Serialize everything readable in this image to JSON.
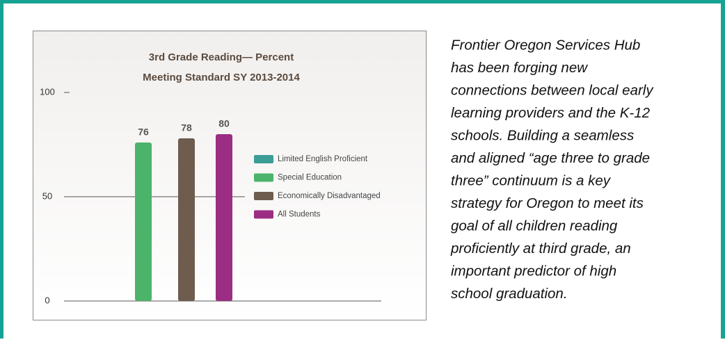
{
  "chart_data": {
    "type": "bar",
    "title": [
      "3rd Grade Reading— Percent",
      "Meeting Standard SY 2013-2014"
    ],
    "ylim": [
      0,
      100
    ],
    "yticks": [
      0,
      50,
      100
    ],
    "series": [
      {
        "name": "Limited English Proficient",
        "color": "#3a9e96",
        "values": [
          null
        ]
      },
      {
        "name": "Special Education",
        "color": "#4cb36a",
        "values": [
          76
        ]
      },
      {
        "name": "Economically Disadvantaged",
        "color": "#6e5c4e",
        "values": [
          78
        ]
      },
      {
        "name": "All Students",
        "color": "#9b2d83",
        "values": [
          80
        ]
      }
    ]
  },
  "text": {
    "lines": [
      "Frontier Oregon Services Hub",
      "has been forging new",
      "connections between local early",
      "learning providers and the K-12",
      "schools.  Building a seamless",
      "and aligned “age three to grade",
      "three” continuum is a key",
      "strategy for Oregon to meet its",
      "goal of all children reading",
      "proficiently at third grade, an",
      "important predictor of high",
      "school graduation."
    ]
  }
}
